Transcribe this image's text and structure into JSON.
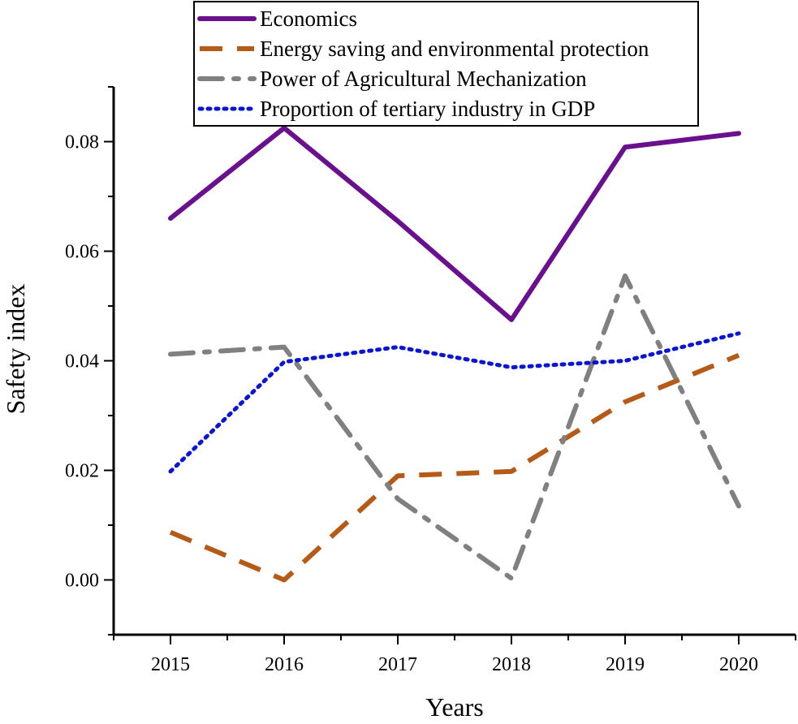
{
  "chart_data": {
    "type": "line",
    "title": "",
    "xlabel": "Years",
    "ylabel": "Safety index",
    "x": [
      "2015",
      "2016",
      "2017",
      "2018",
      "2019",
      "2020"
    ],
    "yticks": [
      "0.00",
      "0.02",
      "0.04",
      "0.06",
      "0.08"
    ],
    "ylim": [
      -0.01,
      0.09
    ],
    "legend_position": "top",
    "series": [
      {
        "name": "Economics",
        "values": [
          0.066,
          0.0825,
          0.0655,
          0.0475,
          0.079,
          0.0815
        ],
        "color": "#6a0f8e",
        "style": "solid"
      },
      {
        "name": "Energy saving and environmental protection",
        "values": [
          0.0087,
          0.0,
          0.019,
          0.0198,
          0.0325,
          0.041
        ],
        "color": "#b55a17",
        "style": "dash"
      },
      {
        "name": "Power of Agricultural Mechanization",
        "values": [
          0.0412,
          0.0425,
          0.0148,
          0.0003,
          0.0555,
          0.0135
        ],
        "color": "#808080",
        "style": "dashdot"
      },
      {
        "name": "Proportion of tertiary industry in GDP",
        "values": [
          0.0198,
          0.0398,
          0.0425,
          0.0388,
          0.04,
          0.045
        ],
        "color": "#0a14d6",
        "style": "dot"
      }
    ]
  }
}
